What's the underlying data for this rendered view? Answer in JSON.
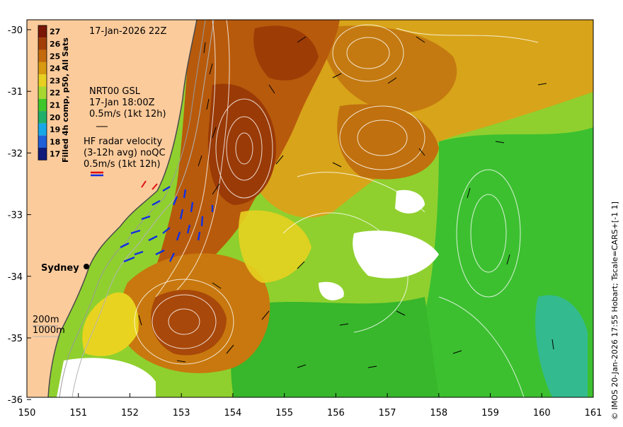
{
  "map": {
    "date_label": "17-Jan-2026 22Z",
    "colorbar": {
      "title": "Filled 4h comp, p50, All Sats",
      "ticks": [
        "27",
        "26",
        "25",
        "24",
        "23",
        "22",
        "21",
        "20",
        "19",
        "18",
        "17"
      ],
      "colors": [
        "#7a1606",
        "#a23e08",
        "#c46a0c",
        "#d89a10",
        "#e8d020",
        "#a8d830",
        "#40c82a",
        "#20b06a",
        "#18a8e8",
        "#2060d8",
        "#101c7a"
      ]
    },
    "gsl_legend": {
      "line1": "NRT00 GSL",
      "line2": "17-Jan 18:00Z",
      "line3": "0.5m/s (1kt 12h)"
    },
    "hf_legend": {
      "line1": "HF radar velocity",
      "line2": "(3-12h avg) noQC",
      "line3": "0.5m/s (1kt 12h)"
    },
    "city_label": "Sydney",
    "depth_legend": {
      "line1": "200m",
      "line2": "1000m"
    },
    "credit": "© IMOS 20-Jan-2026 17:55 Hobart; Tscale=CARS+[-1 1]",
    "x_ticks": [
      "150",
      "151",
      "152",
      "153",
      "154",
      "155",
      "156",
      "157",
      "158",
      "159",
      "160",
      "161"
    ],
    "y_ticks": [
      "-30",
      "-31",
      "-32",
      "-33",
      "-34",
      "-35",
      "-36"
    ],
    "colors": {
      "land": "#fccb9c",
      "warm_core": "#b8560c",
      "eac": "#d08a12",
      "mid": "#e6c41c",
      "cool": "#9ad42c",
      "cold": "#2eb42a",
      "cloud": "#ffffff"
    }
  }
}
